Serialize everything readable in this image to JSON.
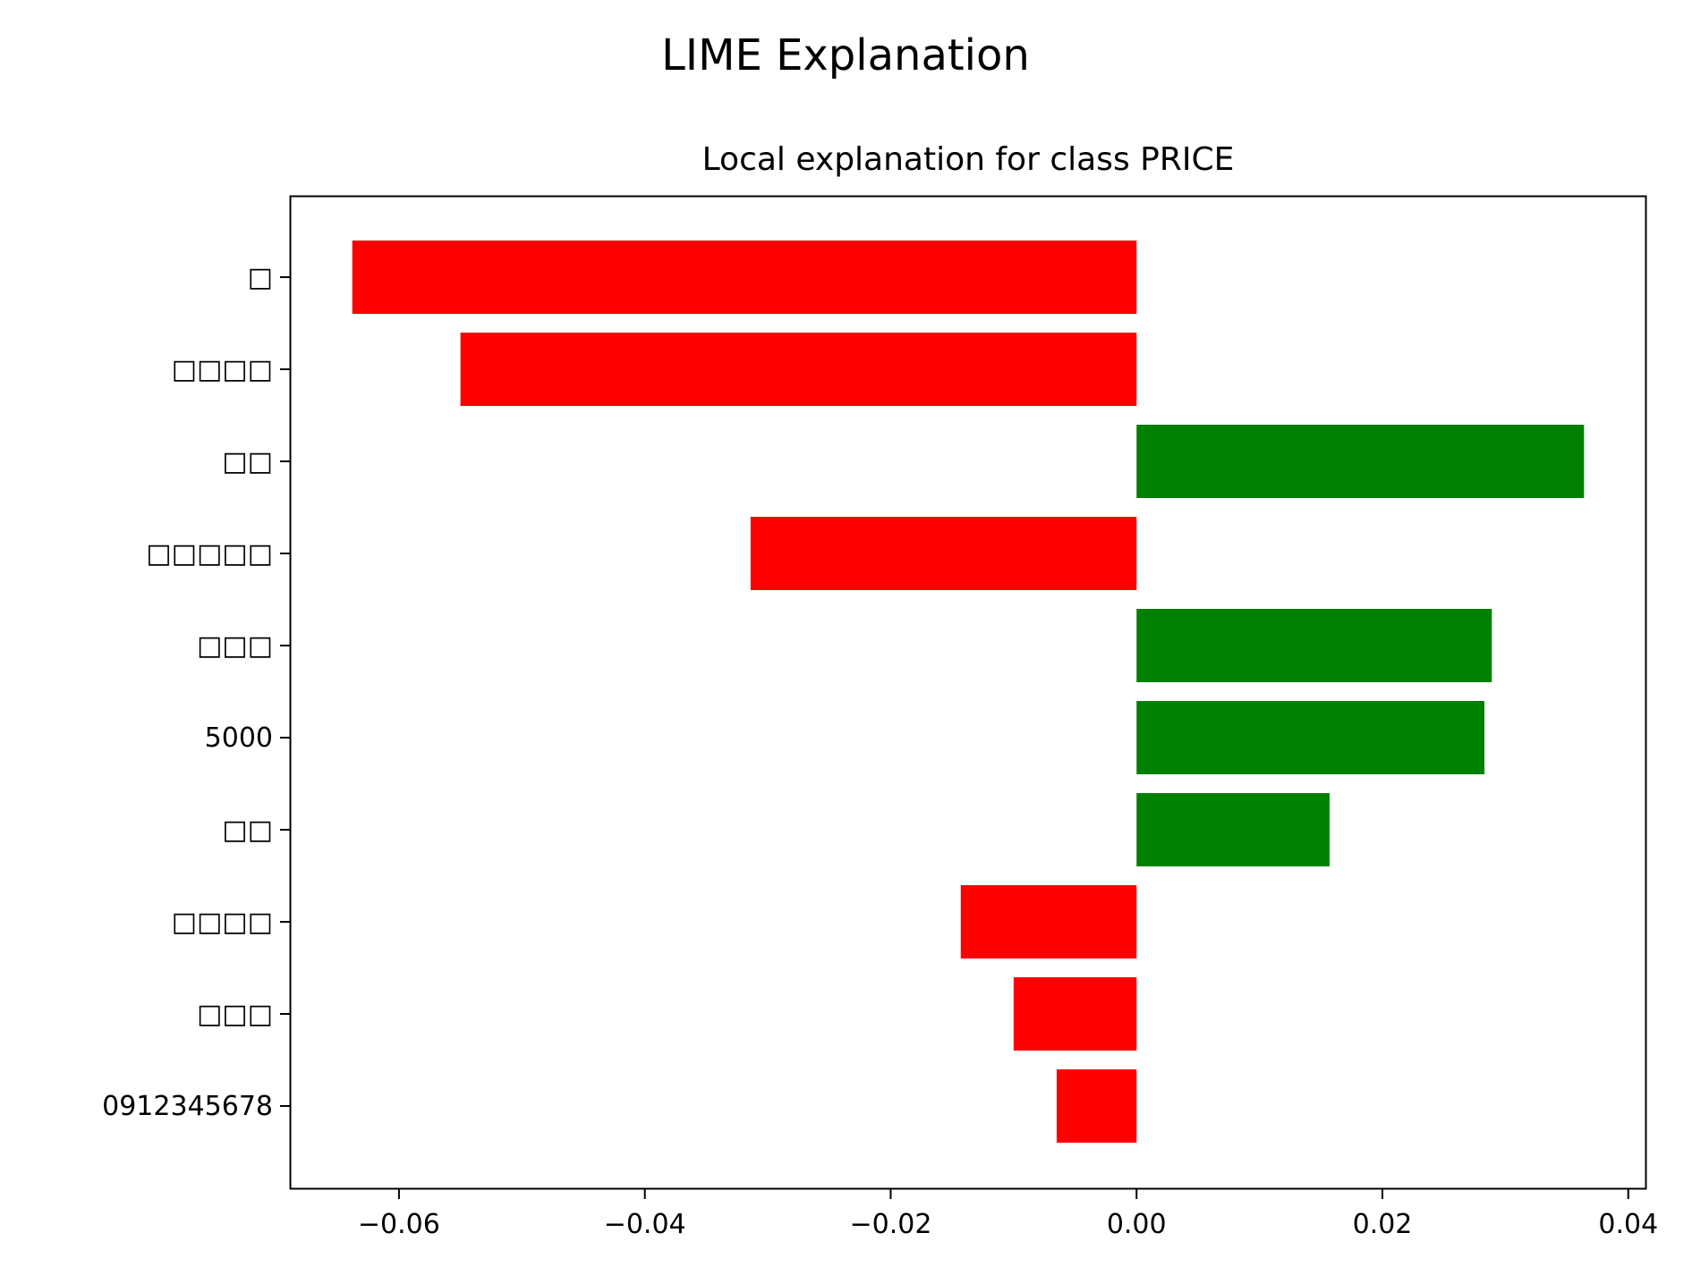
{
  "chart_data": {
    "type": "bar",
    "orientation": "horizontal",
    "suptitle": "LIME Explanation",
    "title": "Local explanation for class PRICE",
    "xlabel": "",
    "ylabel": "",
    "categories": [
      "□",
      "□□□□",
      "□□",
      "□□□□□",
      "□□□",
      "5000",
      "□□",
      "□□□□",
      "□□□",
      "0912345678"
    ],
    "values": [
      -0.0638,
      -0.055,
      0.0364,
      -0.0314,
      0.0289,
      0.0283,
      0.0157,
      -0.0143,
      -0.01,
      -0.0065
    ],
    "xlim": [
      -0.0688,
      0.0414
    ],
    "xticks": [
      -0.06,
      -0.04,
      -0.02,
      0.0,
      0.02,
      0.04
    ],
    "xtick_labels": [
      "−0.06",
      "−0.04",
      "−0.02",
      "0.00",
      "0.02",
      "0.04"
    ],
    "positive_color": "#008000",
    "negative_color": "#ff0000",
    "grid": false,
    "legend": "none"
  }
}
